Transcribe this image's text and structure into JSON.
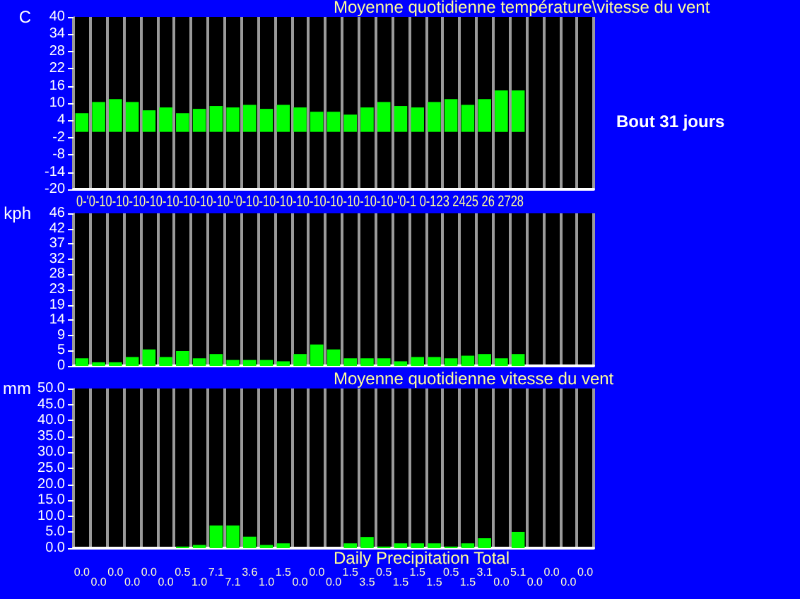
{
  "chart_data": [
    {
      "type": "bar",
      "title": "Moyenne quotidienne température\\vitesse du vent",
      "ylabel": "C",
      "annotations": [
        "0-'0-10-10-10-10-10-10-10-10-'0-10-10-10-10-10-10-10-10-10-'0-1 0-123 2425 26 2728",
        "Bout 31 jours"
      ],
      "categories": [
        null,
        null,
        null,
        null,
        null,
        null,
        null,
        null,
        null,
        null,
        null,
        null,
        null,
        null,
        null,
        null,
        null,
        null,
        null,
        null,
        null,
        null,
        null,
        null,
        null,
        null,
        null,
        null,
        null,
        null,
        null
      ],
      "values": [
        6.5,
        10.4,
        11.4,
        10.4,
        7.5,
        8.5,
        6.5,
        8.0,
        9.0,
        8.5,
        9.4,
        8.0,
        9.4,
        8.5,
        7.0,
        7.0,
        6.0,
        8.5,
        10.4,
        9.0,
        8.5,
        10.4,
        11.4,
        9.4,
        11.4,
        14.4,
        14.4,
        null,
        null,
        null,
        null
      ],
      "color": "#00ff00",
      "ylim": [
        -20,
        40
      ],
      "yticks": [
        -20,
        -14,
        -8,
        -2,
        4,
        10,
        16,
        22,
        28,
        34,
        40
      ],
      "grid": "x",
      "tick_labels": "y"
    },
    {
      "type": "bar",
      "ylabel": "kph",
      "categories": [
        null,
        null,
        null,
        null,
        null,
        null,
        null,
        null,
        null,
        null,
        null,
        null,
        null,
        null,
        null,
        null,
        null,
        null,
        null,
        null,
        null,
        null,
        null,
        null,
        null,
        null,
        null,
        null,
        null,
        null,
        null
      ],
      "values": [
        2.3,
        1.1,
        1.1,
        2.7,
        5.0,
        2.7,
        4.5,
        2.3,
        3.6,
        1.8,
        1.8,
        1.8,
        1.4,
        3.6,
        6.5,
        5.0,
        2.3,
        2.3,
        2.3,
        1.4,
        2.7,
        2.7,
        2.3,
        3.1,
        3.6,
        2.3,
        3.6,
        null,
        null,
        null,
        null
      ],
      "color": "#00ff00",
      "ylim": [
        0,
        46.3
      ],
      "yticks": [
        0,
        {
          "value": 4.63,
          "label": "5"
        },
        {
          "value": 9.26,
          "label": "9"
        },
        {
          "value": 13.89,
          "label": "14"
        },
        {
          "value": 18.52,
          "label": "19"
        },
        {
          "value": 23.15,
          "label": "23"
        },
        {
          "value": 27.78,
          "label": "28"
        },
        {
          "value": 32.41,
          "label": "32"
        },
        {
          "value": 37.04,
          "label": "37"
        },
        {
          "value": 41.67,
          "label": "42"
        },
        {
          "value": 46.3,
          "label": "46"
        }
      ],
      "grid": "x",
      "tick_labels": "y"
    },
    {
      "type": "bar",
      "title": "Moyenne quotidienne vitesse du vent",
      "xlabel": "Daily Precipitation Total",
      "ylabel": "mm",
      "categories": [
        null,
        null,
        null,
        null,
        null,
        null,
        null,
        null,
        null,
        null,
        null,
        null,
        null,
        null,
        null,
        null,
        null,
        null,
        null,
        null,
        null,
        null,
        null,
        null,
        null,
        null,
        null,
        null,
        null,
        null,
        null
      ],
      "values": [
        0,
        0,
        0,
        0,
        0,
        0,
        0.5,
        1.0,
        7.1,
        7.1,
        3.6,
        1.0,
        1.5,
        0,
        0,
        0,
        1.5,
        3.5,
        0.5,
        1.5,
        1.5,
        1.5,
        0.5,
        1.5,
        3.1,
        0,
        5.1,
        0,
        0,
        0,
        0
      ],
      "value_labels": [
        "0.0",
        "0.0",
        "0.0",
        "0.0",
        "0.0",
        "0.0",
        "0.5",
        "1.0",
        "7.1",
        "7.1",
        "3.6",
        "1.0",
        "1.5",
        "0.0",
        "0.0",
        "0.0",
        "1.5",
        "3.5",
        "0.5",
        "1.5",
        "1.5",
        "1.5",
        "0.5",
        "1.5",
        "3.1",
        "0.0",
        "5.1",
        "0.0",
        "0.0",
        "0.0",
        "0.0"
      ],
      "color": "#00ff00",
      "ylim": [
        0,
        50
      ],
      "yticks": [
        {
          "value": 0,
          "label": "0.0"
        },
        {
          "value": 5,
          "label": "5.0"
        },
        {
          "value": 10,
          "label": "10.0"
        },
        {
          "value": 15,
          "label": "15.0"
        },
        {
          "value": 20,
          "label": "20.0"
        },
        {
          "value": 25,
          "label": "25.0"
        },
        {
          "value": 30,
          "label": "30.0"
        },
        {
          "value": 35,
          "label": "35.0"
        },
        {
          "value": 40,
          "label": "40.0"
        },
        {
          "value": 45,
          "label": "45.0"
        },
        {
          "value": 50,
          "label": "50.0"
        }
      ],
      "grid": "x",
      "tick_labels": "y"
    }
  ]
}
